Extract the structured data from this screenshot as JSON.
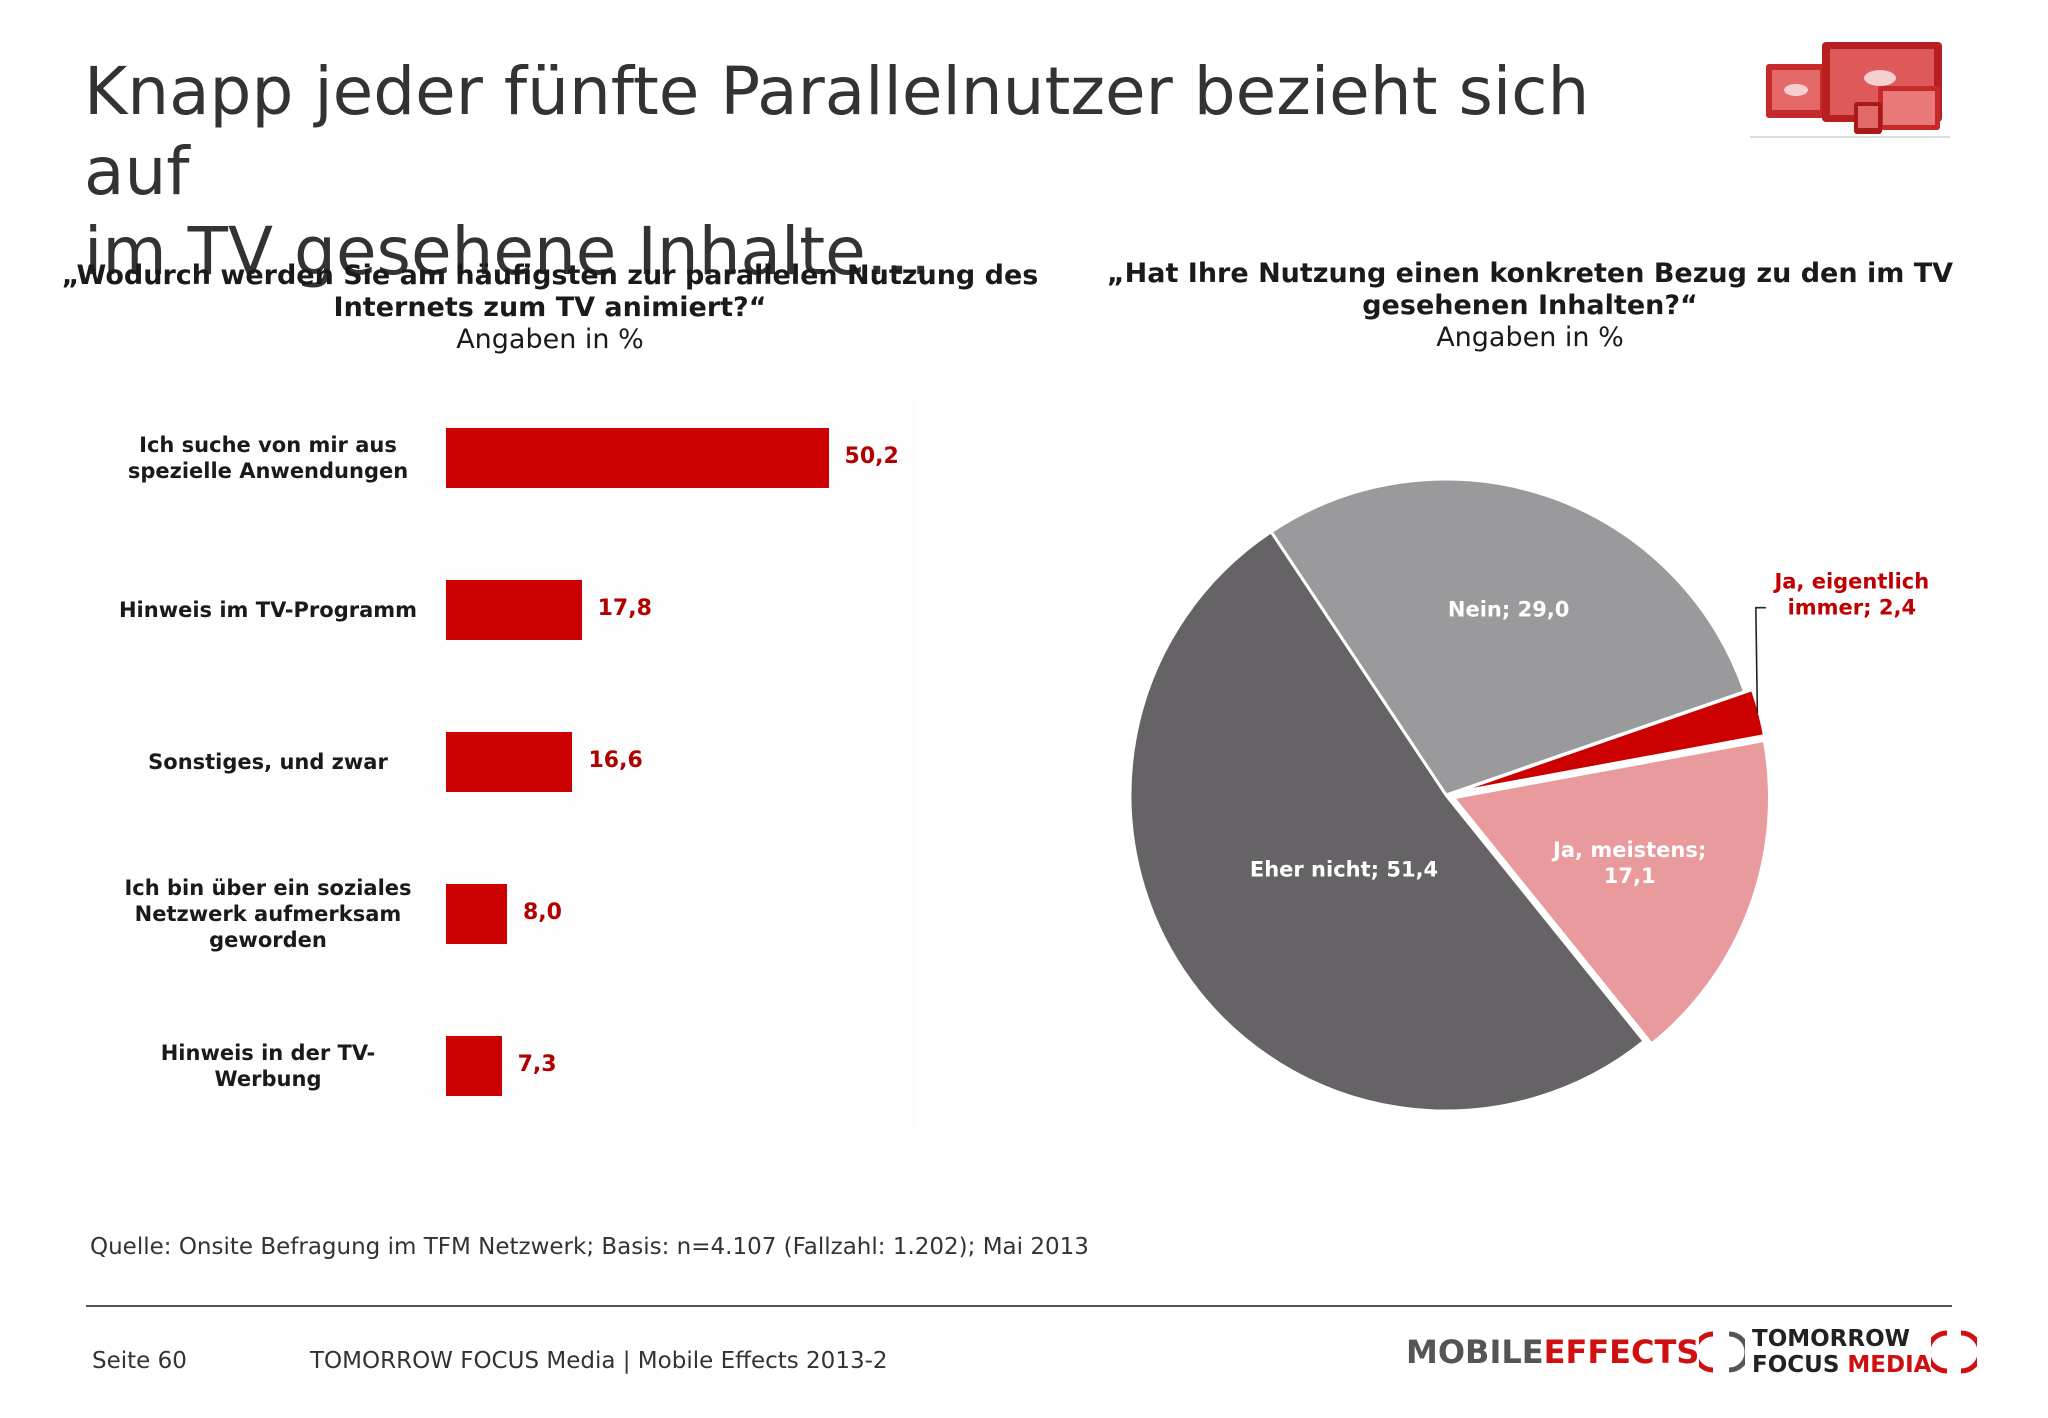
{
  "title_lines": [
    "Knapp jeder fünfte Parallelnutzer bezieht sich auf",
    "im TV gesehene Inhalte…"
  ],
  "left_chart": {
    "question_lines": [
      "„Wodurch werden Sie am häufigsten zur parallelen Nutzung des",
      "Internets zum TV animiert?“"
    ],
    "subtitle": "Angaben in %"
  },
  "right_chart": {
    "question_lines": [
      "„Hat Ihre Nutzung einen konkreten Bezug zu den im TV",
      "gesehenen Inhalten?“"
    ],
    "subtitle": "Angaben in %"
  },
  "chart_data": [
    {
      "type": "bar",
      "orientation": "horizontal",
      "title": "„Wodurch werden Sie am häufigsten zur parallelen Nutzung des Internets zum TV animiert?“",
      "subtitle": "Angaben in %",
      "categories": [
        "Ich suche von mir aus spezielle Anwendungen",
        "Hinweis im TV-Programm",
        "Sonstiges, und zwar",
        "Ich bin über ein soziales Netzwerk aufmerksam geworden",
        "Hinweis in der TV-Werbung"
      ],
      "category_lines": [
        [
          "Ich suche von mir aus",
          "spezielle Anwendungen"
        ],
        [
          "Hinweis im TV-Programm"
        ],
        [
          "Sonstiges, und zwar"
        ],
        [
          "Ich bin über ein soziales",
          "Netzwerk aufmerksam",
          "geworden"
        ],
        [
          "Hinweis in der TV-Werbung"
        ]
      ],
      "values": [
        50.2,
        17.8,
        16.6,
        8.0,
        7.3
      ],
      "value_labels": [
        "50,2",
        "17,8",
        "16,6",
        "8,0",
        "7,3"
      ],
      "color": "#cc0000",
      "label_color": "#b00000",
      "xlim": [
        0,
        100
      ]
    },
    {
      "type": "pie",
      "title": "„Hat Ihre Nutzung einen konkreten Bezug zu den im TV gesehenen Inhalten?“",
      "subtitle": "Angaben in %",
      "slices": [
        {
          "label": "Nein",
          "value": 29.0,
          "text_lines": [
            "Nein; 29,0"
          ],
          "color": "#9a999b",
          "text_color": "#ffffff"
        },
        {
          "label": "Ja, eigentlich immer",
          "value": 2.4,
          "text_lines": [
            "Ja, eigentlich",
            "immer; 2,4"
          ],
          "color": "#cc0000",
          "text_color": "#c00000",
          "exploded": true
        },
        {
          "label": "Ja, meistens",
          "value": 17.1,
          "text_lines": [
            "Ja, meistens;",
            "17,1"
          ],
          "color": "#e99a9c",
          "text_color": "#ffffff",
          "exploded": true
        },
        {
          "label": "Eher nicht",
          "value": 51.4,
          "text_lines": [
            "Eher nicht; 51,4"
          ],
          "color": "#656366",
          "text_color": "#ffffff"
        }
      ]
    }
  ],
  "source_note": "Quelle: Onsite Befragung im TFM Netzwerk; Basis: n=4.107 (Fallzahl: 1.202); Mai 2013",
  "footer": {
    "page": "Seite 60",
    "text": "TOMORROW FOCUS Media | Mobile Effects 2013-2",
    "brand_mobile": "MOBILE",
    "brand_effects": "EFFECTS",
    "brand_tomorrow": "TOMORROW",
    "brand_focus": "FOCUS",
    "brand_media": "MEDIA"
  }
}
